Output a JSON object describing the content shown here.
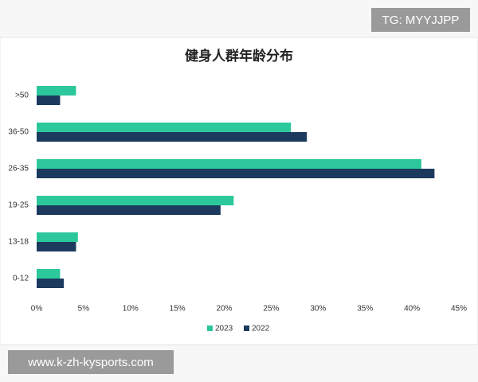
{
  "chart_data": {
    "type": "hbar",
    "title": "健身人群年龄分布",
    "categories": [
      ">50",
      "36-50",
      "26-35",
      "19-25",
      "13-18",
      "0-12"
    ],
    "series": [
      {
        "name": "2023",
        "color": "#2cc89c",
        "values": [
          4.2,
          27.1,
          41.0,
          21.0,
          4.4,
          2.5
        ]
      },
      {
        "name": "2022",
        "color": "#1b3a5e",
        "values": [
          2.5,
          28.8,
          42.4,
          19.6,
          4.2,
          2.9
        ]
      }
    ],
    "xlim": [
      0,
      45
    ],
    "xticks": [
      {
        "value": 0,
        "label": "0%"
      },
      {
        "value": 5,
        "label": "5%"
      },
      {
        "value": 10,
        "label": "10%"
      },
      {
        "value": 15,
        "label": "15%"
      },
      {
        "value": 20,
        "label": "20%"
      },
      {
        "value": 25,
        "label": "25%"
      },
      {
        "value": 30,
        "label": "30%"
      },
      {
        "value": 35,
        "label": "35%"
      },
      {
        "value": 40,
        "label": "40%"
      },
      {
        "value": 45,
        "label": "45%"
      }
    ],
    "grid": false,
    "legend": "bottom"
  },
  "overlay": {
    "tg_label": "TG: MYYJJPP",
    "site_label": "www.k-zh-kysports.com"
  }
}
